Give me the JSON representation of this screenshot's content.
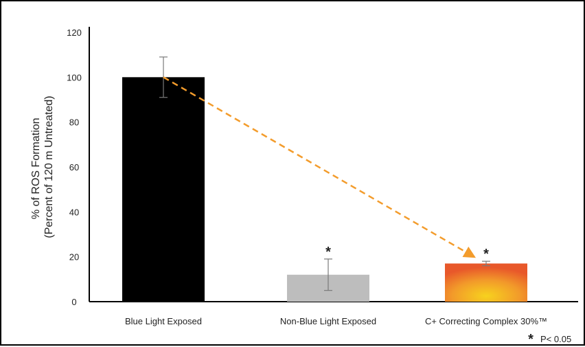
{
  "chart_data": {
    "type": "bar",
    "categories": [
      "Blue Light Exposed",
      "Non-Blue Light Exposed",
      "C+ Correcting Complex 30%™"
    ],
    "values": [
      100,
      12,
      17
    ],
    "error": [
      9,
      7,
      1
    ],
    "significant": [
      false,
      true,
      true
    ],
    "ylabel_line1": "% of ROS Formation",
    "ylabel_line2": "(Percent of 120 m Untreated)",
    "xlabel": "",
    "ylim": [
      0,
      120
    ],
    "yticks": [
      0,
      20,
      40,
      60,
      80,
      100,
      120
    ],
    "grid": false,
    "bar_colors": [
      "#000000",
      "#bdbdbd",
      "gradient-orange-yellow"
    ],
    "arrow_color": "#f39c2c",
    "arrow": {
      "from_category": 0,
      "to_category": 2
    },
    "significance_symbol": "*",
    "footnote": {
      "symbol": "*",
      "text": "P< 0.05"
    }
  }
}
